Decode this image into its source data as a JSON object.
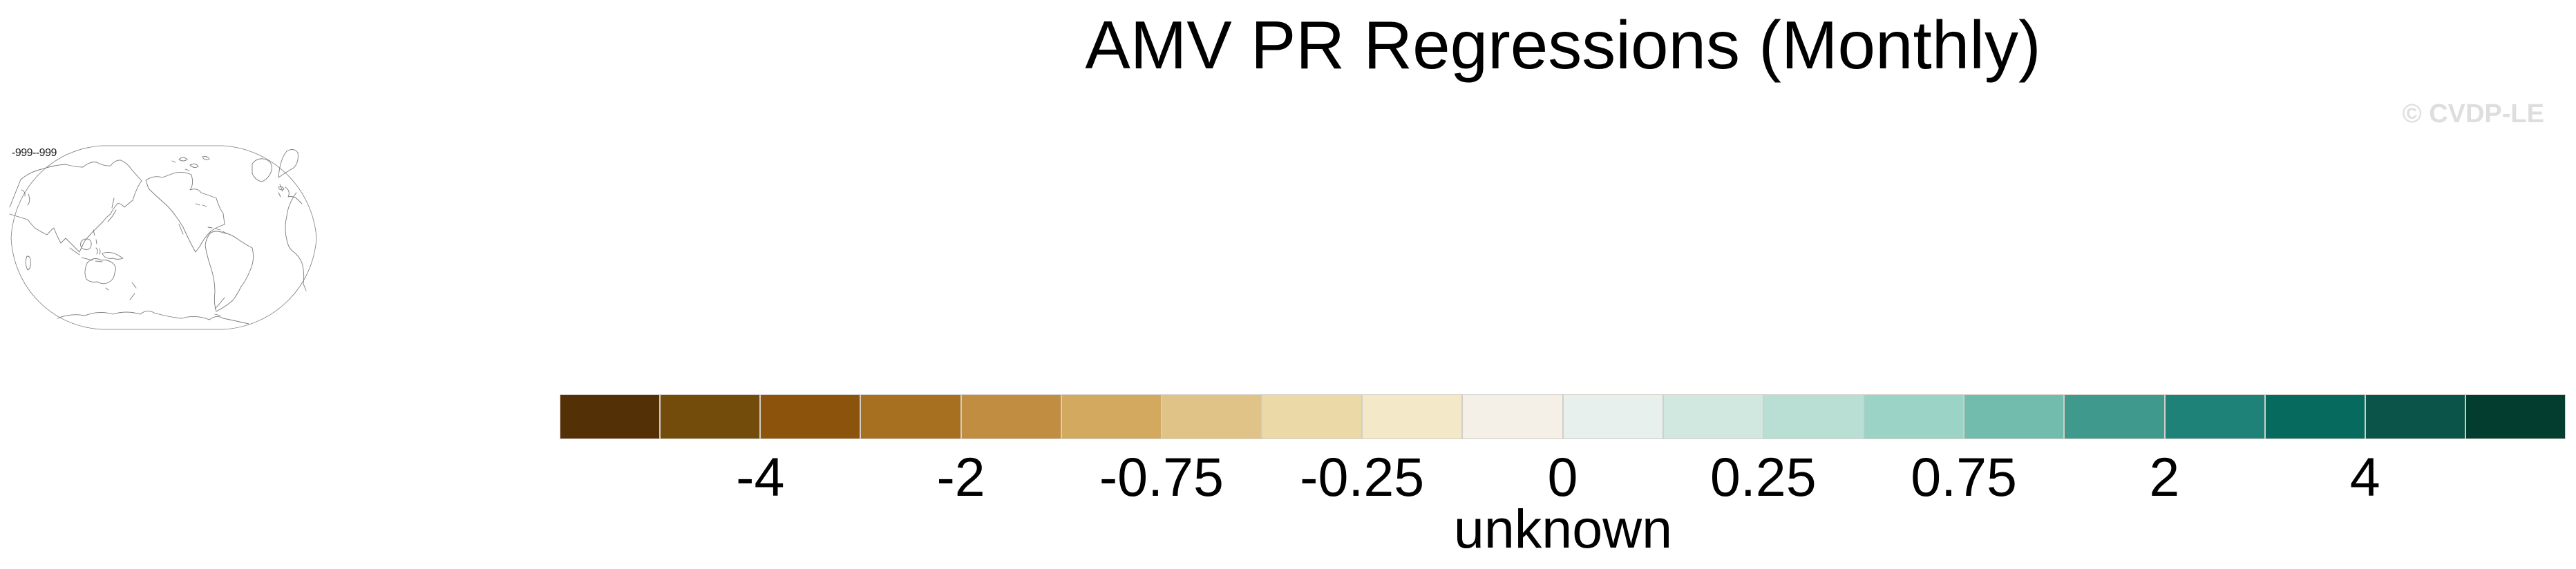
{
  "page": {
    "background": "#ffffff"
  },
  "header": {
    "title": "AMV PR Regressions (Monthly)",
    "watermark": "© CVDP-LE",
    "watermark_color": "#dedede"
  },
  "map_panel": {
    "range_label": "-999--999",
    "coastline_color": "#7a7a7a"
  },
  "chart_data": {
    "type": "heatmap",
    "title": "AMV PR Regressions (Monthly)",
    "map_status_label": "-999--999",
    "legend_position": "bottom",
    "colorbar": {
      "orientation": "horizontal",
      "units_label": "unknown",
      "tick_labels": [
        "-4",
        "-2",
        "-0.75",
        "-0.25",
        "0",
        "0.25",
        "0.75",
        "2",
        "4"
      ],
      "tick_positions_pct": [
        10,
        20,
        30,
        40,
        50,
        60,
        70,
        80,
        90
      ],
      "separator_color": "#d2cec7",
      "segment_colors": [
        "#543007",
        "#734b0b",
        "#8b530c",
        "#a76f20",
        "#c18d40",
        "#d2a95f",
        "#e0c487",
        "#ecd9a8",
        "#f3e9c8",
        "#f4efe7",
        "#e7f0ec",
        "#d0e8e0",
        "#b9dfd4",
        "#9bd4c7",
        "#72bcae",
        "#3f9a8d",
        "#1f8278",
        "#066a5f",
        "#0a5449",
        "#033d30"
      ]
    }
  }
}
